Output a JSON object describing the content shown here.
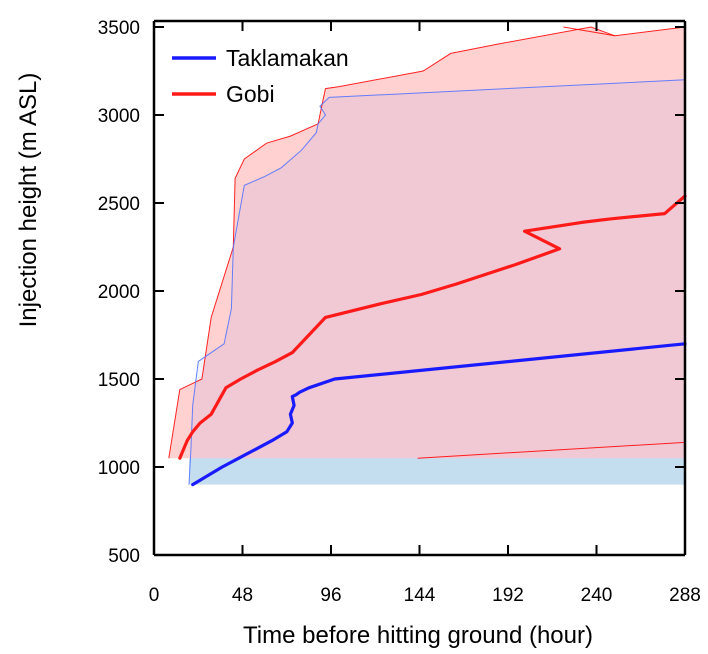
{
  "chart_data": {
    "type": "line",
    "title": "",
    "xlabel": "Time before hitting ground (hour)",
    "ylabel": "Injection height (m ASL)",
    "xlim": [
      0,
      288
    ],
    "ylim": [
      500,
      3500
    ],
    "xticks": [
      0,
      48,
      96,
      144,
      192,
      240,
      288
    ],
    "xtick_labels": [
      "0",
      "48",
      "96",
      "144",
      "192",
      "240",
      "288"
    ],
    "yticks": [
      500,
      1000,
      1500,
      2000,
      2500,
      3000,
      3500
    ],
    "ytick_labels": [
      "500",
      "1000",
      "1500",
      "2000",
      "2500",
      "3000",
      "3500"
    ],
    "grid": false,
    "legend_position": "top-left",
    "series": [
      {
        "name": "Taklamakan",
        "color": "#1a1aff",
        "x": [
          21,
          29,
          37,
          46,
          55,
          64,
          72,
          75,
          74,
          76,
          75,
          77,
          79,
          84,
          98,
          288
        ],
        "y": [
          900,
          950,
          1000,
          1050,
          1100,
          1150,
          1200,
          1250,
          1300,
          1350,
          1400,
          1410,
          1425,
          1450,
          1500,
          1700
        ]
      },
      {
        "name": "Gobi",
        "color": "#ff1a1a",
        "x": [
          14,
          16,
          18,
          21,
          25,
          31,
          39,
          47,
          56,
          66,
          75,
          84,
          93,
          124,
          145,
          164,
          196,
          220,
          201,
          232,
          248,
          277,
          288
        ],
        "y": [
          1050,
          1100,
          1150,
          1200,
          1250,
          1300,
          1450,
          1500,
          1550,
          1600,
          1650,
          1750,
          1850,
          1930,
          1980,
          2040,
          2150,
          2240,
          2340,
          2390,
          2410,
          2440,
          2540
        ]
      }
    ],
    "bands": [
      {
        "series": "Gobi",
        "color": "#ff0000",
        "upper": {
          "x": [
            8,
            14,
            26,
            31,
            43,
            44,
            49,
            61,
            74,
            89,
            92,
            93,
            100,
            146,
            161,
            185,
            237,
            250,
            288
          ],
          "y": [
            1050,
            1440,
            1500,
            1850,
            2250,
            2640,
            2750,
            2840,
            2880,
            2950,
            3100,
            3150,
            3160,
            3250,
            3350,
            3400,
            3500,
            3450,
            3500
          ],
          "extra_x": [
            250,
            222
          ],
          "extra_y": [
            3450,
            3500
          ]
        },
        "lower": {
          "x": [
            8,
            288
          ],
          "y": [
            1050,
            1050
          ]
        },
        "lower_line": {
          "x": [
            143,
            288
          ],
          "y": [
            1050,
            1140
          ]
        }
      },
      {
        "series": "Taklamakan",
        "color": "#4a6fff",
        "upper": {
          "x": [
            19,
            20,
            21,
            24,
            38,
            42,
            43,
            49,
            60,
            69,
            80,
            88,
            89,
            93,
            90,
            95,
            288
          ],
          "y": [
            900,
            1100,
            1350,
            1600,
            1700,
            1900,
            2250,
            2600,
            2650,
            2700,
            2800,
            2900,
            2950,
            3000,
            3050,
            3100,
            3200
          ],
          "extra_x": [],
          "extra_y": []
        },
        "lower": {
          "x": [
            19,
            288
          ],
          "y": [
            900,
            900
          ]
        }
      }
    ],
    "base_fill": {
      "color": "#cfe8ef",
      "x": [
        19,
        288
      ],
      "y_bottom": 900,
      "y_top": 1050
    }
  }
}
